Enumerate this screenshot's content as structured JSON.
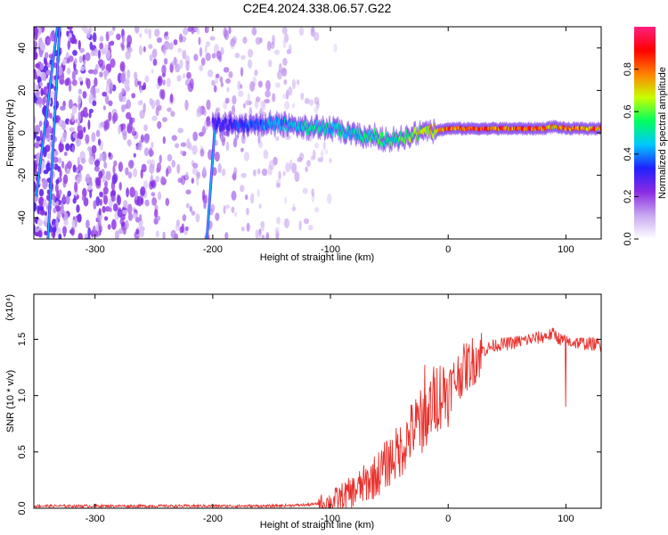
{
  "title": "C2E4.2024.338.06.57.G22",
  "chart_data": [
    {
      "type": "heatmap",
      "xlabel": "Height of straight line (km)",
      "ylabel": "Frequency (Hz)",
      "xlim": [
        -352,
        130
      ],
      "ylim": [
        -50,
        50
      ],
      "x_ticks": [
        -300,
        -200,
        -100,
        0,
        100
      ],
      "y_ticks": [
        -40,
        -20,
        0,
        20,
        40
      ],
      "colorbar": {
        "label": "Normalized spectral amplitude",
        "ticks": [
          0.0,
          0.2,
          0.4,
          0.6,
          0.8
        ],
        "range": [
          0,
          1
        ],
        "colormap": [
          "#ffffff",
          "#c8a8f0",
          "#8a2be2",
          "#2020ff",
          "#00c8ff",
          "#00ff60",
          "#c8ff00",
          "#ff8000",
          "#ff0000",
          "#ff2080"
        ]
      },
      "ridge": {
        "x": [
          -200,
          -180,
          -160,
          -140,
          -120,
          -100,
          -80,
          -60,
          -50,
          -40,
          -30,
          -20,
          -10,
          0,
          20,
          40,
          60,
          80,
          90,
          100,
          130
        ],
        "freq": [
          4,
          4,
          4,
          4,
          3,
          2,
          -1,
          -2,
          -4,
          -2,
          -1,
          0,
          1,
          2,
          2,
          2,
          2,
          2,
          3,
          2,
          2
        ],
        "amplitude": [
          0.3,
          0.35,
          0.4,
          0.45,
          0.5,
          0.5,
          0.5,
          0.55,
          0.55,
          0.6,
          0.65,
          0.7,
          0.75,
          0.8,
          0.85,
          0.85,
          0.85,
          0.85,
          0.75,
          0.8,
          0.85
        ]
      },
      "streaks": [
        {
          "x": [
            -350,
            -332
          ],
          "freq": [
            -30,
            50
          ]
        },
        {
          "x": [
            -340,
            -330
          ],
          "freq": [
            -50,
            50
          ]
        },
        {
          "x": [
            -205,
            -198
          ],
          "freq": [
            -50,
            4
          ]
        }
      ],
      "noise_extent_x": [
        -352,
        -125
      ]
    },
    {
      "type": "line",
      "xlabel": "Height of straight line (km)",
      "ylabel": "SNR (10 * v/v)",
      "y_scale_label": "(x10⁴)",
      "xlim": [
        -352,
        130
      ],
      "ylim": [
        0,
        1.9
      ],
      "x_ticks": [
        -300,
        -200,
        -100,
        0,
        100
      ],
      "y_ticks": [
        0.0,
        0.5,
        1.0,
        1.5
      ],
      "color": "#e8312d",
      "series": [
        {
          "x": [
            -352,
            -300,
            -250,
            -200,
            -150,
            -120,
            -100,
            -90,
            -80,
            -70,
            -60,
            -50,
            -40,
            -30,
            -20,
            -10,
            0,
            10,
            20,
            30,
            40,
            50,
            60,
            70,
            80,
            90,
            95,
            100,
            110,
            120,
            130
          ],
          "values": [
            0.02,
            0.02,
            0.02,
            0.02,
            0.02,
            0.03,
            0.05,
            0.1,
            0.15,
            0.22,
            0.3,
            0.42,
            0.52,
            0.7,
            0.8,
            1.0,
            1.05,
            1.2,
            1.3,
            1.4,
            1.45,
            1.46,
            1.48,
            1.5,
            1.52,
            1.55,
            1.5,
            1.48,
            1.47,
            1.46,
            1.45
          ]
        }
      ]
    }
  ]
}
